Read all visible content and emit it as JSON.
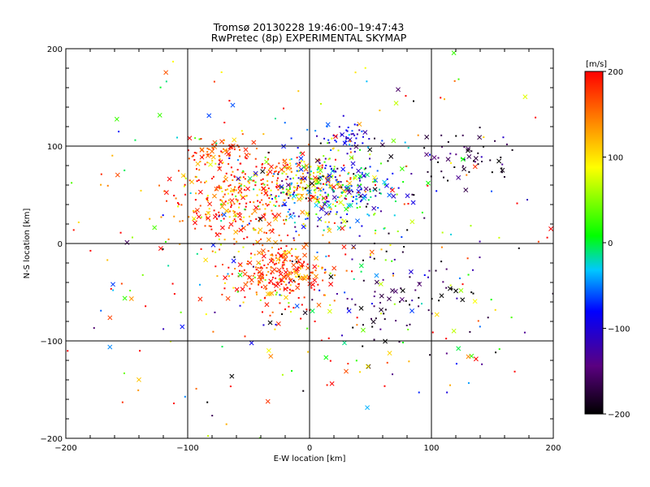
{
  "chart_data": {
    "type": "scatter",
    "title": "Tromsø 20130228 19:46:00–19:47:43",
    "subtitle": "RwPretec (8p) EXPERIMENTAL SKYMAP",
    "xlabel": "E-W location [km]",
    "ylabel": "N-S location [km]",
    "xlim": [
      -200,
      200
    ],
    "ylim": [
      -200,
      200
    ],
    "xticks": [
      "−200",
      "−100",
      "0",
      "100",
      "200"
    ],
    "yticks": [
      "−200",
      "−100",
      "0",
      "100",
      "200"
    ],
    "grid_lines": {
      "x": [
        -100,
        0,
        100
      ],
      "y": [
        -100,
        0,
        100
      ]
    },
    "colorbar": {
      "label": "[m/s]",
      "range": [
        -200,
        200
      ],
      "ticks": [
        "200",
        "100",
        "0",
        "−100",
        "−200"
      ],
      "stops": [
        "#000000",
        "#5a0080",
        "#0000ff",
        "#00c8ff",
        "#00ff00",
        "#ffff00",
        "#ff8000",
        "#ff0000"
      ]
    },
    "marker_types": [
      "dot",
      "cross"
    ],
    "clusters": [
      {
        "x": -60,
        "y": 45,
        "spread": [
          28,
          22
        ],
        "count": 300,
        "velocity_mean": 160,
        "velocity_spread": 50
      },
      {
        "x": -25,
        "y": -30,
        "spread": [
          22,
          18
        ],
        "count": 260,
        "velocity_mean": 175,
        "velocity_spread": 40
      },
      {
        "x": -5,
        "y": 65,
        "spread": [
          22,
          14
        ],
        "count": 160,
        "velocity_mean": 120,
        "velocity_spread": 70
      },
      {
        "x": 20,
        "y": 55,
        "spread": [
          30,
          22
        ],
        "count": 300,
        "velocity_mean": -60,
        "velocity_spread": 90
      },
      {
        "x": -75,
        "y": 95,
        "spread": [
          15,
          10
        ],
        "count": 60,
        "velocity_mean": 170,
        "velocity_spread": 30
      },
      {
        "x": 30,
        "y": 110,
        "spread": [
          12,
          8
        ],
        "count": 45,
        "velocity_mean": -100,
        "velocity_spread": 30
      },
      {
        "x": 130,
        "y": 85,
        "spread": [
          22,
          14
        ],
        "count": 55,
        "velocity_mean": -170,
        "velocity_spread": 30
      },
      {
        "x": 75,
        "y": -60,
        "spread": [
          35,
          25
        ],
        "count": 90,
        "velocity_mean": -170,
        "velocity_spread": 40
      },
      {
        "x": 0,
        "y": 0,
        "spread": [
          110,
          100
        ],
        "count": 420,
        "velocity_mean": 60,
        "velocity_spread": 130
      }
    ]
  }
}
